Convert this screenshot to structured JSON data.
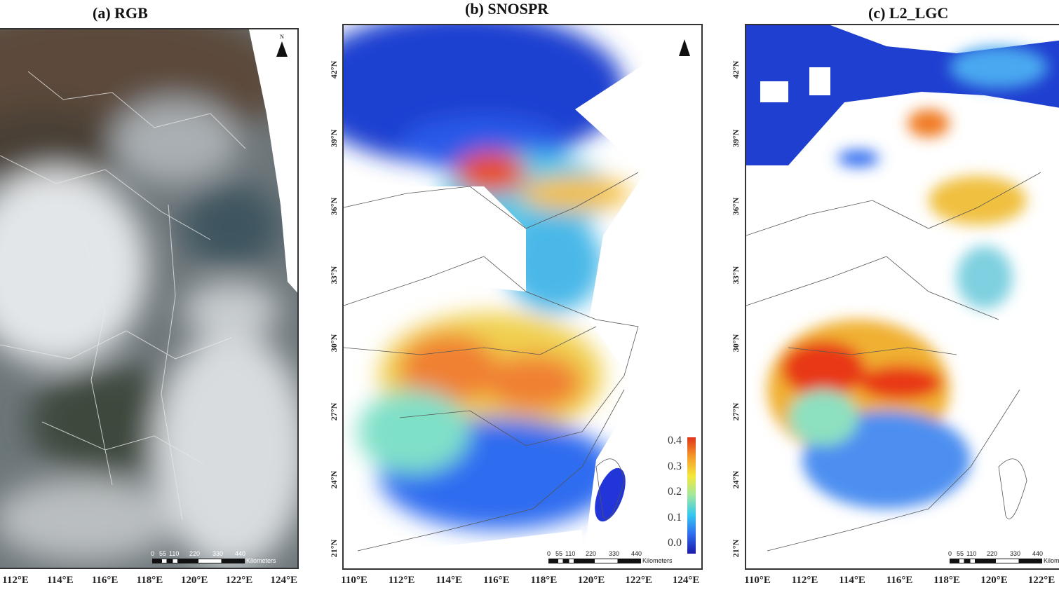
{
  "panels": [
    {
      "title": "(a) RGB",
      "lon_ticks": [
        "112°E",
        "114°E",
        "116°E",
        "118°E",
        "120°E",
        "122°E",
        "124°E"
      ],
      "lat_ticks": []
    },
    {
      "title": "(b) SNOSPR",
      "lon_ticks": [
        "110°E",
        "112°E",
        "114°E",
        "116°E",
        "118°E",
        "120°E",
        "122°E",
        "124°E"
      ],
      "lat_ticks": [
        "42°N",
        "39°N",
        "36°N",
        "33°N",
        "30°N",
        "27°N",
        "24°N",
        "21°N"
      ]
    },
    {
      "title": "(c) L2_LGC",
      "lon_ticks": [
        "110°E",
        "112°E",
        "114°E",
        "116°E",
        "118°E",
        "120°E",
        "122°E"
      ],
      "lat_ticks": [
        "42°N",
        "39°N",
        "36°N",
        "33°N",
        "30°N",
        "27°N",
        "24°N",
        "21°N"
      ]
    }
  ],
  "north_arrow": {
    "label": "N",
    "icon": "north-arrow-icon"
  },
  "scale_bar": {
    "labels": [
      "0",
      "55",
      "110",
      "220",
      "330",
      "440"
    ],
    "unit": "Kilometers"
  },
  "colorbar": {
    "ticks": [
      "0.4",
      "0.3",
      "0.2",
      "0.1",
      "0.0"
    ],
    "range": [
      0.0,
      0.4
    ],
    "colors": [
      "#1a1aa8",
      "#2f6cf0",
      "#35c8f0",
      "#9fe8a0",
      "#f5e83a",
      "#f59a2a",
      "#e0361a"
    ]
  }
}
